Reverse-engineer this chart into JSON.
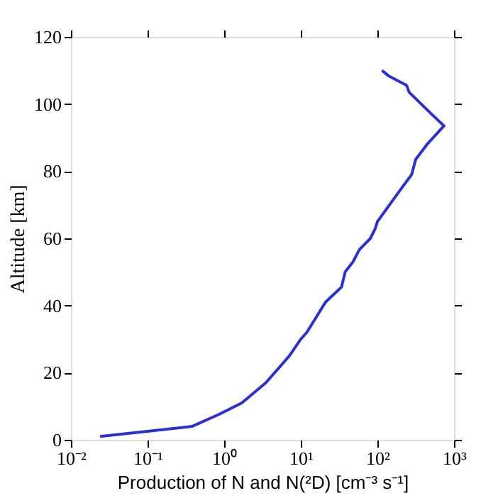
{
  "chart_data": {
    "type": "line",
    "xlabel": "Production of N and N(²D) [cm⁻³ s⁻¹]",
    "ylabel": "Altitude [km]",
    "series": [
      {
        "color": "#2a2fd6",
        "x": [
          0.024,
          0.38,
          0.86,
          1.7,
          3.5,
          7.1,
          10,
          12,
          21,
          34,
          38,
          48,
          58,
          81,
          94,
          100,
          200,
          280,
          316,
          445,
          740,
          510,
          260,
          240,
          140,
          115
        ],
        "values": [
          1,
          4,
          7.6,
          11,
          17,
          25,
          30,
          32,
          41,
          45.5,
          50,
          53,
          56.6,
          60,
          63,
          65,
          74.5,
          79,
          83.5,
          88,
          93.5,
          97,
          103.5,
          105.6,
          108.4,
          110
        ]
      }
    ],
    "log": "x",
    "xlim": [
      0.01,
      1000
    ],
    "xticks": [
      {
        "value": 0.01,
        "label": "10⁻²"
      },
      {
        "value": 0.1,
        "label": "10⁻¹"
      },
      {
        "value": 1,
        "label": "10⁰"
      },
      {
        "value": 10,
        "label": "10¹"
      },
      {
        "value": 100,
        "label": "10²"
      },
      {
        "value": 1000,
        "label": "10³"
      }
    ],
    "ylim": [
      0,
      120
    ],
    "yticks": [
      0,
      20,
      40,
      60,
      80,
      100,
      120
    ],
    "grid": false,
    "line_style": "solid",
    "marker": "none"
  }
}
